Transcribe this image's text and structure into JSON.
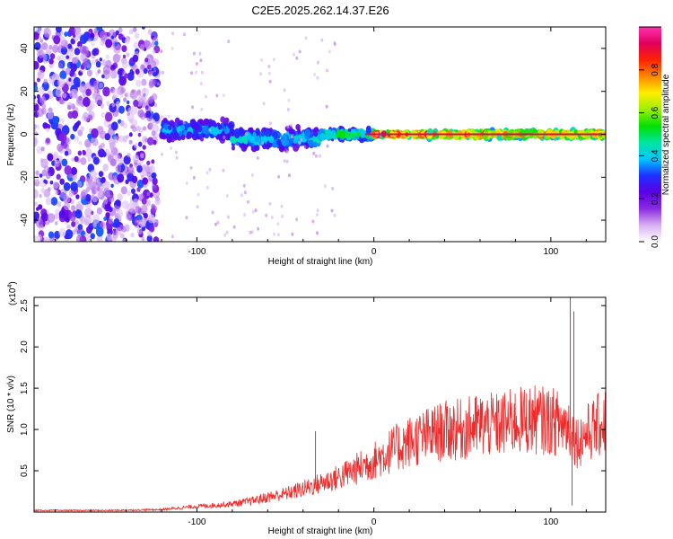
{
  "title": "C2E5.2025.262.14.37.E26",
  "chart_data": [
    {
      "type": "heatmap",
      "name": "spectrogram",
      "xlabel": "Height of straight line (km)",
      "ylabel": "Frequency (Hz)",
      "xlim": [
        -192,
        131
      ],
      "ylim": [
        -50,
        50
      ],
      "xticks": [
        -100,
        0,
        100
      ],
      "yticks": [
        -40,
        -20,
        0,
        20,
        40
      ],
      "colorbar": {
        "label": "Normalized spectral amplitude",
        "range": [
          0,
          1
        ],
        "ticks": [
          0.0,
          0.2,
          0.4,
          0.6,
          0.8
        ],
        "colormap": [
          "#ffffff",
          "#d8b0f2",
          "#8a2be2",
          "#5b00e6",
          "#1e30ff",
          "#00c8ff",
          "#00e5a0",
          "#00e000",
          "#9aef00",
          "#ffee00",
          "#ff8800",
          "#ff2200",
          "#e0005a",
          "#ff30b0"
        ]
      },
      "regions": [
        {
          "x": [
            -192,
            -122
          ],
          "f_center": 0,
          "f_halfwidth": 50,
          "amplitude": 0.25,
          "note": "broadband noise"
        },
        {
          "x": [
            -120,
            -80
          ],
          "f_center": 2,
          "f_halfwidth": 6,
          "amplitude": 0.4
        },
        {
          "x": [
            -80,
            -30
          ],
          "f_center": -2,
          "f_halfwidth": 6,
          "amplitude": 0.45
        },
        {
          "x": [
            -30,
            0
          ],
          "f_center": 0,
          "f_halfwidth": 3,
          "amplitude": 0.55
        },
        {
          "x": [
            0,
            30
          ],
          "f_center": 0,
          "f_halfwidth": 1,
          "amplitude": 0.95
        },
        {
          "x": [
            30,
            131
          ],
          "f_center": 0,
          "f_halfwidth": 2,
          "amplitude": 0.85
        }
      ]
    },
    {
      "type": "line",
      "name": "snr",
      "xlabel": "Height of straight line (km)",
      "ylabel": "SNR (10 * v/v)",
      "y_scale_label": "(x10",
      "y_scale_exp": "4",
      "y_scale_close": ")",
      "xlim": [
        -192,
        131
      ],
      "ylim": [
        0,
        2.6
      ],
      "xticks": [
        -100,
        0,
        100
      ],
      "yticks": [
        0.5,
        1.0,
        1.5,
        2.0,
        2.5
      ],
      "yticklabels": [
        "0.5",
        "1.0",
        "1.5",
        "2.0",
        "2.5"
      ],
      "color": "#ee2b2b",
      "series": [
        {
          "name": "SNR",
          "x": [
            -192,
            -150,
            -120,
            -110,
            -100,
            -90,
            -80,
            -70,
            -60,
            -50,
            -40,
            -30,
            -20,
            -10,
            0,
            10,
            20,
            30,
            40,
            50,
            60,
            70,
            80,
            90,
            100,
            110,
            115,
            120,
            131
          ],
          "y": [
            0.02,
            0.02,
            0.03,
            0.05,
            0.07,
            0.08,
            0.1,
            0.13,
            0.18,
            0.22,
            0.28,
            0.35,
            0.42,
            0.52,
            0.62,
            0.75,
            0.85,
            0.92,
            0.98,
            1.0,
            1.05,
            1.05,
            1.1,
            1.12,
            1.1,
            1.05,
            0.85,
            0.95,
            1.1
          ]
        }
      ],
      "spikes": [
        {
          "x": -33,
          "y": 0.98
        },
        {
          "x": 45,
          "y": 1.28
        },
        {
          "x": 90,
          "y": 1.35
        },
        {
          "x": 98,
          "y": 1.4
        },
        {
          "x": 111,
          "y": 2.6
        },
        {
          "x": 113,
          "y": 2.43
        },
        {
          "x": 112,
          "y": 0.08
        }
      ]
    }
  ]
}
